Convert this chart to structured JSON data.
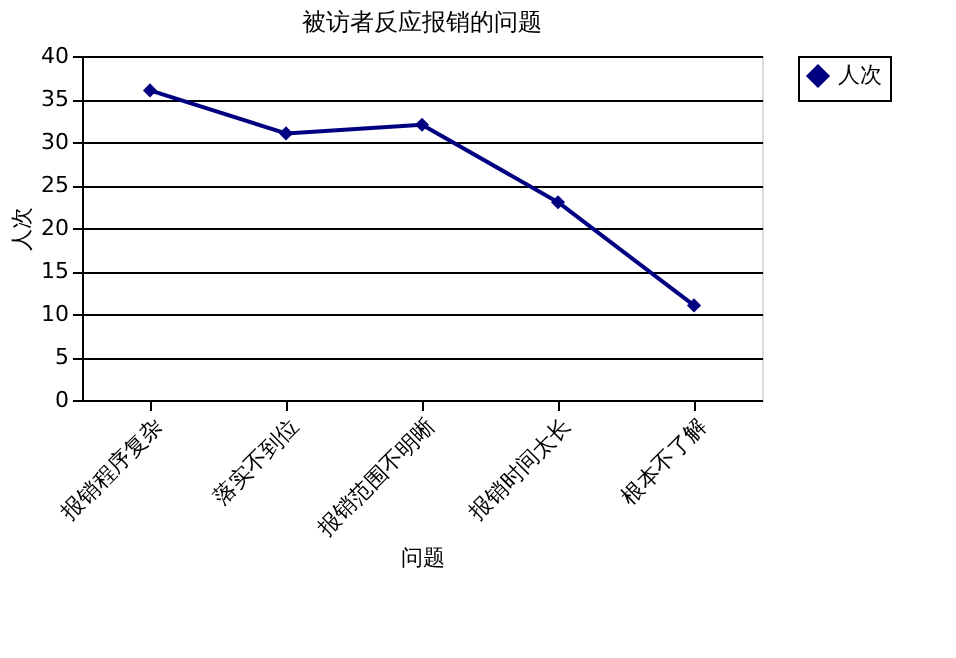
{
  "chart_data": {
    "type": "line",
    "title": "被访者反应报销的问题",
    "xlabel": "问题",
    "ylabel": "人次",
    "categories": [
      "报销程序复杂",
      "落实不到位",
      "报销范围不明晰",
      "报销时间太长",
      "根本不了解"
    ],
    "series": [
      {
        "name": "人次",
        "color": "#000080",
        "values": [
          36,
          31,
          32,
          23,
          11
        ]
      }
    ],
    "ylim": [
      0,
      40
    ],
    "yticks": [
      0,
      5,
      10,
      15,
      20,
      25,
      30,
      35,
      40
    ],
    "grid": "y",
    "legend": "right",
    "marker": "diamond",
    "line_style": "solid"
  }
}
